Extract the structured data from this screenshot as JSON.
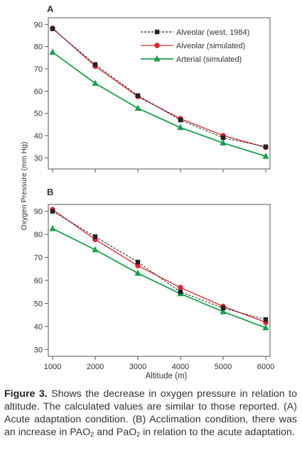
{
  "chart_data": [
    {
      "type": "line",
      "panel_label": "A",
      "x": [
        1000,
        2000,
        3000,
        4000,
        5000,
        6000
      ],
      "ylim": [
        25,
        93
      ],
      "yticks": [
        30,
        40,
        50,
        60,
        70,
        80,
        90
      ],
      "legend_position": "top-right",
      "series": [
        {
          "name": "Alveolar (west, 1984)",
          "values": [
            88,
            72,
            58,
            47,
            39,
            35
          ],
          "color": "#222222",
          "marker": "square",
          "dash": true
        },
        {
          "name": "Alveolar (simulated)",
          "values": [
            88.3,
            71.2,
            57.6,
            47.6,
            40.0,
            34.7
          ],
          "color": "#d9272e",
          "marker": "circle",
          "dash": false
        },
        {
          "name": "Arterial (simulated)",
          "values": [
            77.5,
            63.5,
            52.3,
            43.6,
            36.7,
            30.7
          ],
          "color": "#19a04a",
          "marker": "triangle",
          "dash": false
        }
      ]
    },
    {
      "type": "line",
      "panel_label": "B",
      "x": [
        1000,
        2000,
        3000,
        4000,
        5000,
        6000
      ],
      "xticks": [
        1000,
        2000,
        3000,
        4000,
        5000,
        6000
      ],
      "ylim": [
        27,
        93
      ],
      "yticks": [
        30,
        40,
        50,
        60,
        70,
        80,
        90
      ],
      "series": [
        {
          "name": "Alveolar (west, 1984)",
          "values": [
            90,
            79,
            68,
            55,
            48,
            43
          ],
          "color": "#222222",
          "marker": "square",
          "dash": true
        },
        {
          "name": "Alveolar (simulated)",
          "values": [
            90.8,
            77.8,
            66.4,
            56.9,
            48.7,
            41.8
          ],
          "color": "#d9272e",
          "marker": "circle",
          "dash": false
        },
        {
          "name": "Arterial (simulated)",
          "values": [
            82.5,
            73.3,
            63.1,
            54.2,
            46.4,
            39.4
          ],
          "color": "#19a04a",
          "marker": "triangle",
          "dash": false
        }
      ]
    }
  ],
  "ylabel": "Oxygen Pressure (mm Hg)",
  "xlabel": "Altitude (m)",
  "caption": {
    "label": "Figure 3.",
    "text_part1": " Shows the decrease in oxygen pressure in relation to altitude. The calculated values are similar to those reported. (A) Acute adaptation condition. (B) Acclimation condition, there was an increase in PAO",
    "sub1": "2",
    "text_part2": " and PaO",
    "sub2": "2",
    "text_part3": " in relation to the acute adaptation."
  }
}
